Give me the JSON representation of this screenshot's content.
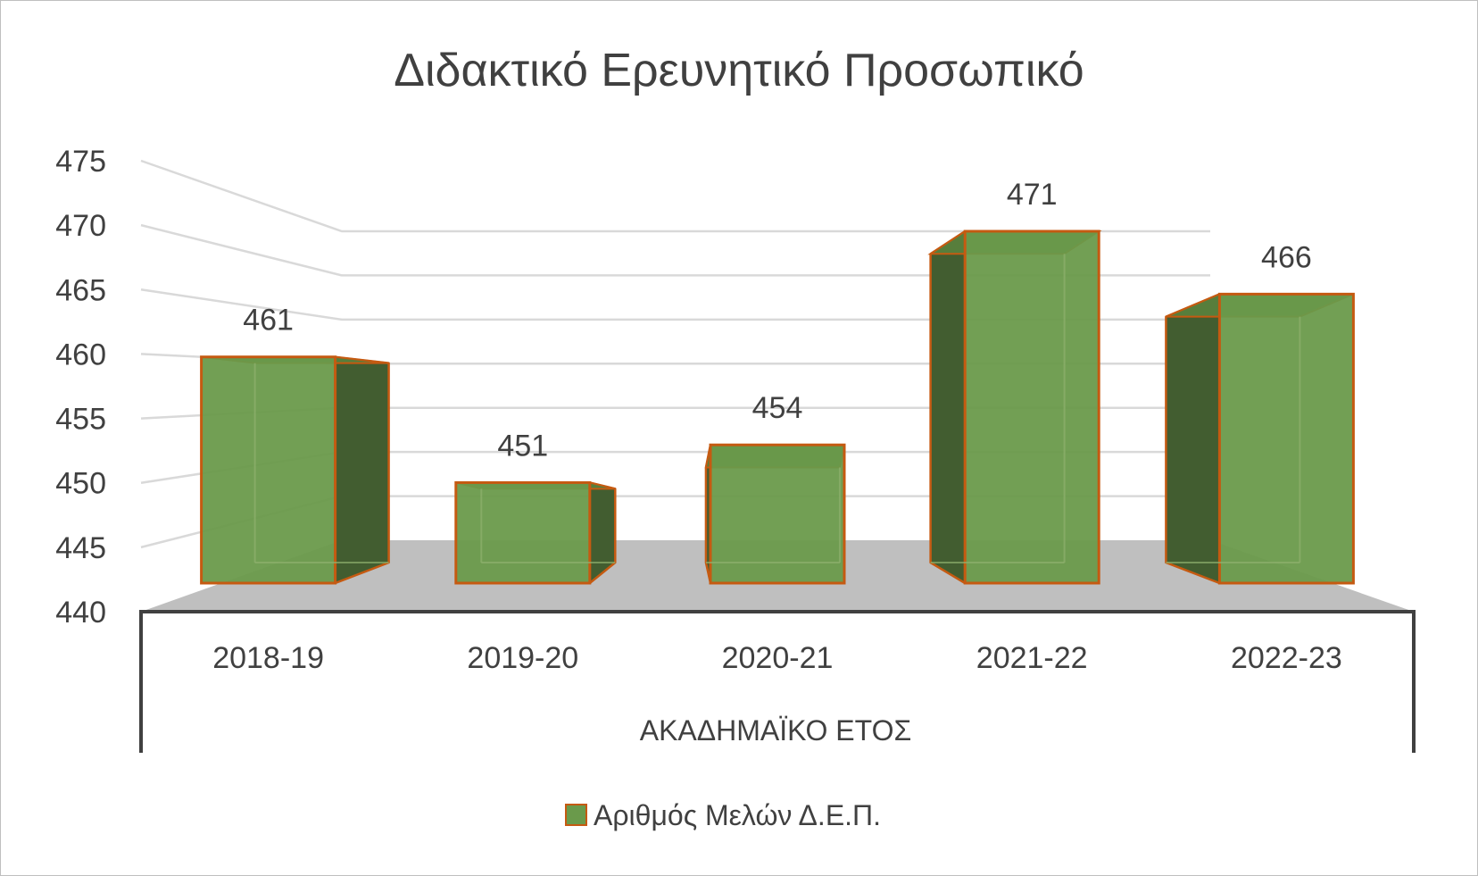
{
  "chart_data": {
    "type": "bar",
    "title": "Διδακτικό Ερευνητικό Προσωπικό",
    "xlabel": "ΑΚΑΔΗΜΑΪΚΟ ΕΤΟΣ",
    "ylabel": "",
    "categories": [
      "2018-19",
      "2019-20",
      "2020-21",
      "2021-22",
      "2022-23"
    ],
    "series": [
      {
        "name": "Αριθμός Μελών Δ.Ε.Π.",
        "values": [
          461,
          451,
          454,
          471,
          466
        ],
        "color": "#6a9a4b",
        "edge_color": "#c55a11"
      }
    ],
    "ylim": [
      440,
      475
    ],
    "yticks": [
      440,
      445,
      450,
      455,
      460,
      465,
      470,
      475
    ],
    "grid": true,
    "legend": "bottom",
    "style": "3d-column"
  }
}
